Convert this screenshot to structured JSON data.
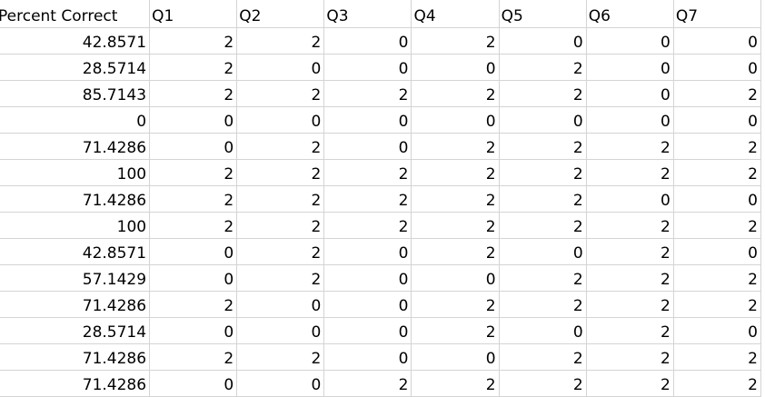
{
  "sheet": {
    "headers": [
      "Percent Correct",
      "Q1",
      "Q2",
      "Q3",
      "Q4",
      "Q5",
      "Q6",
      "Q7"
    ],
    "rows": [
      [
        "42.8571",
        "2",
        "2",
        "0",
        "2",
        "0",
        "0",
        "0"
      ],
      [
        "28.5714",
        "2",
        "0",
        "0",
        "0",
        "2",
        "0",
        "0"
      ],
      [
        "85.7143",
        "2",
        "2",
        "2",
        "2",
        "2",
        "0",
        "2"
      ],
      [
        "0",
        "0",
        "0",
        "0",
        "0",
        "0",
        "0",
        "0"
      ],
      [
        "71.4286",
        "0",
        "2",
        "0",
        "2",
        "2",
        "2",
        "2"
      ],
      [
        "100",
        "2",
        "2",
        "2",
        "2",
        "2",
        "2",
        "2"
      ],
      [
        "71.4286",
        "2",
        "2",
        "2",
        "2",
        "2",
        "0",
        "0"
      ],
      [
        "100",
        "2",
        "2",
        "2",
        "2",
        "2",
        "2",
        "2"
      ],
      [
        "42.8571",
        "0",
        "2",
        "0",
        "2",
        "0",
        "2",
        "0"
      ],
      [
        "57.1429",
        "0",
        "2",
        "0",
        "0",
        "2",
        "2",
        "2"
      ],
      [
        "71.4286",
        "2",
        "0",
        "0",
        "2",
        "2",
        "2",
        "2"
      ],
      [
        "28.5714",
        "0",
        "0",
        "0",
        "2",
        "0",
        "2",
        "0"
      ],
      [
        "71.4286",
        "2",
        "2",
        "0",
        "0",
        "2",
        "2",
        "2"
      ],
      [
        "71.4286",
        "0",
        "0",
        "2",
        "2",
        "2",
        "2",
        "2"
      ]
    ]
  }
}
